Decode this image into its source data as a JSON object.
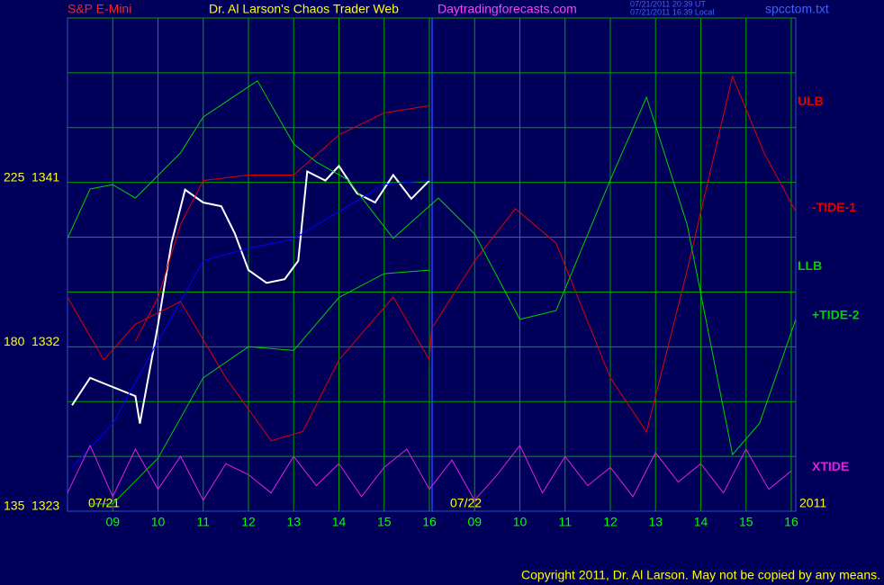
{
  "chart_data": {
    "type": "line",
    "title": "Dr. Al Larson's Chaos Trader Web",
    "subtitle": "S&P E-Mini",
    "website": "Daytradingforecasts.com",
    "timestamps": [
      "07/21/2011 20:39 UT",
      "07/21/2011 16:39 Local"
    ],
    "file": "spcctom.txt",
    "date_labels": [
      "07/21",
      "07/22",
      "2011"
    ],
    "copyright": "Copyright 2011, Dr. Al Larson. May not be copied by any means.",
    "xlim": [
      0,
      16.1
    ],
    "xticks": [
      {
        "value": 1,
        "label": "09"
      },
      {
        "value": 2,
        "label": "10"
      },
      {
        "value": 3,
        "label": "11"
      },
      {
        "value": 4,
        "label": "12"
      },
      {
        "value": 5,
        "label": "13"
      },
      {
        "value": 6,
        "label": "14"
      },
      {
        "value": 7,
        "label": "15"
      },
      {
        "value": 8,
        "label": "16"
      },
      {
        "value": 9,
        "label": "09"
      },
      {
        "value": 10,
        "label": "10"
      },
      {
        "value": 11,
        "label": "11"
      },
      {
        "value": 12,
        "label": "12"
      },
      {
        "value": 13,
        "label": "13"
      },
      {
        "value": 14,
        "label": "14"
      },
      {
        "value": 15,
        "label": "15"
      },
      {
        "value": 16,
        "label": "16"
      }
    ],
    "ylim": [
      1323,
      1350
    ],
    "yticks": [
      1323,
      1332,
      1341
    ],
    "ygrid": [
      1326,
      1329,
      1332,
      1335,
      1338,
      1341,
      1344,
      1347,
      1350
    ],
    "y2lim": [
      135,
      270
    ],
    "y2ticks": [
      135,
      180,
      225
    ],
    "grid": true,
    "series": [
      {
        "color": "#ffffff",
        "x": [
          0.1,
          0.5,
          1.0,
          1.5,
          1.6,
          2,
          2.3,
          2.6,
          3,
          3.4,
          3.7,
          4,
          4.4,
          4.8,
          5.1,
          5.3,
          5.7,
          6,
          6.4,
          6.8,
          7.2,
          7.6,
          8
        ],
        "values": [
          1328.8,
          1330.3,
          1329.8,
          1329.3,
          1327.8,
          1333.2,
          1337.7,
          1340.6,
          1339.9,
          1339.7,
          1338.2,
          1336.2,
          1335.5,
          1335.7,
          1336.7,
          1341.6,
          1341.1,
          1341.9,
          1340.4,
          1339.9,
          1341.4,
          1340.1,
          1341.1
        ]
      },
      {
        "color": "#0000ff",
        "x": [
          0.1,
          1,
          2,
          3,
          4,
          5,
          6,
          7,
          8
        ],
        "values": [
          1325.4,
          1327.8,
          1332.3,
          1336.7,
          1337.4,
          1337.9,
          1339.4,
          1340.9,
          1341.1
        ]
      },
      {
        "name": "ULB",
        "color": "#e00000",
        "x": [
          1.5,
          2,
          2.5,
          3,
          4,
          5,
          6,
          7,
          8
        ],
        "values": [
          1332.3,
          1334.7,
          1338.7,
          1341.1,
          1341.4,
          1341.4,
          1343.6,
          1344.8,
          1345.2
        ]
      },
      {
        "name": "-TIDE-1",
        "axis": "y2",
        "color": "#e00000",
        "x": [
          0,
          0.8,
          1.5,
          2.5,
          3.5,
          4.5,
          5.2,
          6,
          7.2,
          8,
          8.05,
          9,
          9.9,
          10.8,
          12,
          12.8,
          13.7,
          14.7,
          15.4,
          16.1
        ],
        "values": [
          193.6,
          176.4,
          186.2,
          192.4,
          171.5,
          154.3,
          156.8,
          176.4,
          193.6,
          176.4,
          185.0,
          203.5,
          217.8,
          208.4,
          171.5,
          156.7,
          201.0,
          254.0,
          233.1,
          217.0
        ]
      },
      {
        "name": "LLB",
        "color": "#00d000",
        "x": [
          0.5,
          1,
          2,
          3,
          4,
          5,
          6,
          7,
          8
        ],
        "values": [
          1323.4,
          1323.4,
          1325.9,
          1330.3,
          1332.0,
          1331.8,
          1334.7,
          1336.0,
          1336.2
        ]
      },
      {
        "name": "+TIDE-2",
        "axis": "y2",
        "color": "#00d000",
        "x": [
          0,
          0.5,
          1,
          1.5,
          2.5,
          3,
          4.2,
          5,
          5.5,
          6.2,
          7.2,
          8.2,
          9,
          10,
          10.8,
          12,
          12.8,
          13.7,
          14.7,
          15.3,
          16.1
        ],
        "values": [
          209.7,
          223.2,
          224.4,
          220.7,
          233.1,
          242.9,
          252.8,
          235.5,
          230.6,
          225.7,
          209.7,
          220.7,
          210.9,
          187.5,
          189.9,
          225.7,
          248.3,
          213.4,
          150.5,
          159.1,
          187.5
        ]
      },
      {
        "name": "XTIDE",
        "axis": "y2",
        "color": "#e020e0",
        "x": [
          0,
          0.5,
          1,
          1.5,
          2,
          2.5,
          3,
          3.5,
          4,
          4.5,
          5,
          5.5,
          6,
          6.5,
          7,
          7.5,
          8,
          8.5,
          9,
          9.5,
          10,
          10.5,
          11,
          11.5,
          12,
          12.5,
          13,
          13.5,
          14,
          14.5,
          15,
          15.5,
          16
        ],
        "values": [
          140,
          153,
          139,
          152,
          141,
          150,
          138,
          148,
          145,
          140,
          150,
          142,
          148,
          139,
          147,
          152,
          141,
          149,
          138,
          145,
          153,
          140,
          150,
          142,
          147,
          139,
          151,
          143,
          148,
          140,
          152,
          141,
          146
        ]
      }
    ]
  }
}
